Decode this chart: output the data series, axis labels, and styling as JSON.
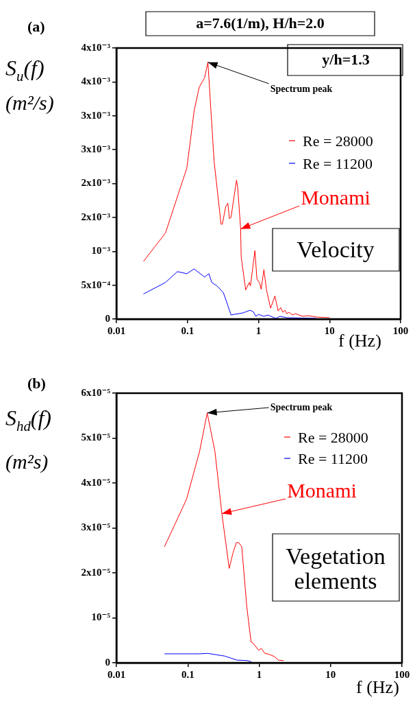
{
  "chart_data": [
    {
      "type": "line",
      "title": "a=7.6(1/m), H/h=2.0",
      "xlabel": "f (Hz)",
      "ylabel": "S$_{u}$(f) (m²/s)",
      "annotations": [
        "(a)",
        "y/h=1.3",
        {
          "text": "Spectrum peak",
          "x": 0.194,
          "y": 0.00379
        },
        {
          "text": "Monami",
          "x": 0.56,
          "y": 0.00133
        },
        "Velocity"
      ],
      "log": "x",
      "grid": false,
      "legend": "top right",
      "xlim": [
        0.01,
        100
      ],
      "xticks": [
        0.01,
        0.1,
        1,
        10,
        100
      ],
      "ylim": [
        0,
        0.004
      ],
      "yticks": [
        0,
        {
          "value": 0.0005,
          "label": "5x10⁻⁴"
        },
        {
          "value": 0.001,
          "label": "10⁻³"
        },
        {
          "value": 0.0015,
          "label": "2x10⁻³"
        },
        {
          "value": 0.002,
          "label": "2x10⁻³"
        },
        {
          "value": 0.0025,
          "label": "3x10⁻³"
        },
        {
          "value": 0.003,
          "label": "3x10⁻³"
        },
        {
          "value": 0.0035,
          "label": "4x10⁻³"
        },
        {
          "value": 0.004,
          "label": "4x10⁻³"
        }
      ],
      "series": [
        {
          "name": "Re = 28000",
          "color": "#ff0000",
          "x": [
            0.024,
            0.049,
            0.098,
            0.124,
            0.146,
            0.174,
            0.194,
            0.237,
            0.297,
            0.31,
            0.345,
            0.37,
            0.39,
            0.41,
            0.49,
            0.51,
            0.56,
            0.57,
            0.66,
            0.74,
            0.77,
            0.89,
            0.95,
            1.04,
            1.09,
            1.19,
            1.3,
            1.48,
            1.7,
            1.89,
            2.05,
            2.2,
            2.35,
            2.5,
            2.7,
            3.0,
            3.3,
            4.2,
            5.0,
            6.5,
            10
          ],
          "values": [
            0.00085,
            0.00127,
            0.00223,
            0.00307,
            0.00342,
            0.00356,
            0.00379,
            0.00233,
            0.0014,
            0.0014,
            0.00166,
            0.00171,
            0.00148,
            0.0015,
            0.00205,
            0.00194,
            0.00133,
            0.00092,
            0.00043,
            0.00054,
            0.00049,
            0.00101,
            0.00059,
            0.00053,
            0.00044,
            0.00073,
            0.00042,
            0.00016,
            0.00034,
            0.00012,
            0.00017,
            0.0001,
            0.00013,
            8e-05,
            0.0001,
            6e-05,
            8e-05,
            4e-05,
            5e-05,
            3e-05,
            2e-05
          ]
        },
        {
          "name": "Re = 11200",
          "color": "#0000ff",
          "x": [
            0.024,
            0.049,
            0.072,
            0.098,
            0.124,
            0.174,
            0.2,
            0.22,
            0.26,
            0.32,
            0.37,
            0.41,
            0.46,
            0.6,
            0.76,
            0.84,
            0.92,
            1.0,
            1.19,
            1.35,
            1.75,
            2.0,
            2.5,
            6.5
          ],
          "values": [
            0.00037,
            0.00054,
            0.0007,
            0.00067,
            0.00074,
            0.00062,
            0.00067,
            0.00054,
            0.00049,
            0.00039,
            0.0002,
            6e-05,
            7e-05,
            9e-05,
            0.00013,
            0.00011,
            4e-05,
            7e-05,
            4e-05,
            6e-05,
            1e-05,
            4e-05,
            2e-05,
            1e-05
          ]
        }
      ]
    },
    {
      "type": "line",
      "xlabel": "f (Hz)",
      "ylabel": "S$_{hd}$(f) (m²s)",
      "annotations": [
        "(b)",
        {
          "text": "Spectrum peak",
          "x": 0.187,
          "y": 5.56e-05
        },
        {
          "text": "Monami",
          "x": 0.3,
          "y": 3.32e-05
        },
        "Vegetation elements"
      ],
      "log": "x",
      "grid": false,
      "legend": "top right",
      "xlim": [
        0.01,
        100
      ],
      "xticks": [
        0.01,
        0.1,
        1,
        10,
        100
      ],
      "ylim": [
        0,
        6e-05
      ],
      "yticks": [
        0,
        {
          "value": 1e-05,
          "label": "10⁻⁵"
        },
        {
          "value": 2e-05,
          "label": "2x10⁻⁵"
        },
        {
          "value": 3e-05,
          "label": "3x10⁻⁵"
        },
        {
          "value": 4e-05,
          "label": "4x10⁻⁵"
        },
        {
          "value": 5e-05,
          "label": "5x10⁻⁵"
        },
        {
          "value": 6e-05,
          "label": "6x10⁻⁵"
        }
      ],
      "series": [
        {
          "name": "Re = 28000",
          "color": "#ff0000",
          "x": [
            0.047,
            0.096,
            0.146,
            0.187,
            0.24,
            0.3,
            0.38,
            0.43,
            0.48,
            0.52,
            0.57,
            0.67,
            0.77,
            0.81,
            0.98,
            1.07,
            1.2,
            1.37,
            1.63,
            1.86,
            2.2
          ],
          "values": [
            2.58e-05,
            3.64e-05,
            4.7e-05,
            5.56e-05,
            4.7e-05,
            3.32e-05,
            2.1e-05,
            2.45e-05,
            2.68e-05,
            2.67e-05,
            2.58e-05,
            1.25e-05,
            4.6e-06,
            4.5e-06,
            2.8e-06,
            3.2e-06,
            2.1e-06,
            1.9e-06,
            1.4e-06,
            6e-07,
            5e-07
          ]
        },
        {
          "name": "Re = 11200",
          "color": "#0000ff",
          "x": [
            0.047,
            0.146,
            0.19,
            0.33,
            0.49,
            0.68,
            0.78
          ],
          "values": [
            2e-06,
            2e-06,
            2.1e-06,
            1.5e-06,
            6e-07,
            5e-07,
            2e-07
          ]
        }
      ]
    }
  ]
}
